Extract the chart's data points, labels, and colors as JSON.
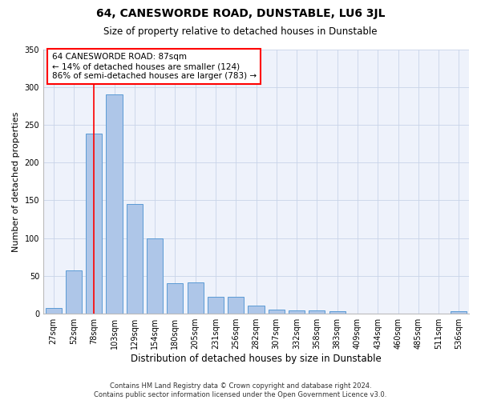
{
  "title": "64, CANESWORDE ROAD, DUNSTABLE, LU6 3JL",
  "subtitle": "Size of property relative to detached houses in Dunstable",
  "xlabel": "Distribution of detached houses by size in Dunstable",
  "ylabel": "Number of detached properties",
  "footer1": "Contains HM Land Registry data © Crown copyright and database right 2024.",
  "footer2": "Contains public sector information licensed under the Open Government Licence v3.0.",
  "annotation_line1": "64 CANESWORDE ROAD: 87sqm",
  "annotation_line2": "← 14% of detached houses are smaller (124)",
  "annotation_line3": "86% of semi-detached houses are larger (783) →",
  "bar_color": "#aec6e8",
  "bar_edge_color": "#5b9bd5",
  "categories": [
    "27sqm",
    "52sqm",
    "78sqm",
    "103sqm",
    "129sqm",
    "154sqm",
    "180sqm",
    "205sqm",
    "231sqm",
    "256sqm",
    "282sqm",
    "307sqm",
    "332sqm",
    "358sqm",
    "383sqm",
    "409sqm",
    "434sqm",
    "460sqm",
    "485sqm",
    "511sqm",
    "536sqm"
  ],
  "values": [
    8,
    57,
    238,
    290,
    145,
    100,
    40,
    42,
    22,
    22,
    11,
    6,
    4,
    4,
    3,
    0,
    0,
    0,
    0,
    0,
    3
  ],
  "ylim": [
    0,
    350
  ],
  "yticks": [
    0,
    50,
    100,
    150,
    200,
    250,
    300,
    350
  ],
  "background_color": "#eef2fb",
  "grid_color": "#c8d4e8",
  "red_line_x": 2.0,
  "title_fontsize": 10,
  "subtitle_fontsize": 8.5,
  "ylabel_fontsize": 8,
  "xlabel_fontsize": 8.5,
  "tick_fontsize": 7,
  "annot_fontsize": 7.5,
  "footer_fontsize": 6
}
